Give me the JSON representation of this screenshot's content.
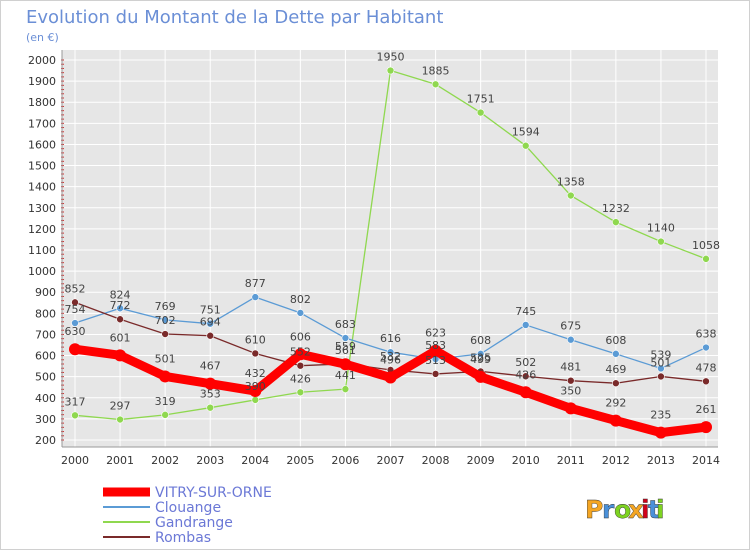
{
  "chart_data": {
    "type": "line",
    "title": "Evolution du Montant de la Dette par Habitant",
    "subtitle": "(en €)",
    "categories": [
      "2000",
      "2001",
      "2002",
      "2003",
      "2004",
      "2005",
      "2006",
      "2007",
      "2008",
      "2009",
      "2010",
      "2011",
      "2012",
      "2013",
      "2014"
    ],
    "ylim": [
      200,
      2000
    ],
    "yticks": [
      200,
      300,
      400,
      500,
      600,
      700,
      800,
      900,
      1000,
      1100,
      1200,
      1300,
      1400,
      1500,
      1600,
      1700,
      1800,
      1900,
      2000
    ],
    "grid": true,
    "legend_position": "bottom-left",
    "series": [
      {
        "name": "VITRY-SUR-ORNE",
        "color": "#ff0000",
        "values": [
          630,
          601,
          501,
          467,
          432,
          606,
          559,
          496,
          623,
          499,
          426,
          350,
          292,
          235,
          261
        ],
        "labels": [
          "630",
          "601",
          "501",
          "467",
          "432",
          "606",
          "559",
          "496",
          "623",
          "499",
          "426",
          "350",
          "292",
          "235",
          "261"
        ]
      },
      {
        "name": "Clouange",
        "color": "#5b9bd5",
        "values": [
          754,
          824,
          769,
          751,
          877,
          802,
          683,
          616,
          583,
          608,
          745,
          675,
          608,
          539,
          638
        ],
        "labels": [
          "754",
          "824",
          "769",
          "751",
          "877",
          "802",
          "683",
          "616",
          "583",
          "608",
          "745",
          "675",
          "608",
          "539",
          "638"
        ]
      },
      {
        "name": "Gandrange",
        "color": "#8fd84f",
        "values": [
          317,
          297,
          319,
          353,
          390,
          426,
          441,
          1950,
          1885,
          1751,
          1594,
          1358,
          1232,
          1140,
          1058
        ],
        "labels": [
          "317",
          "297",
          "319",
          "353",
          "390",
          "426",
          "441",
          "1950",
          "1885",
          "1751",
          "1594",
          "1358",
          "1232",
          "1140",
          "1058"
        ]
      },
      {
        "name": "Rombas",
        "color": "#7a2a2a",
        "values": [
          852,
          772,
          702,
          694,
          610,
          552,
          561,
          532,
          513,
          525,
          502,
          481,
          469,
          501,
          478
        ],
        "labels": [
          "852",
          "772",
          "702",
          "694",
          "610",
          "552",
          "561",
          "532",
          "513",
          "525",
          "502",
          "481",
          "469",
          "501",
          "478"
        ]
      }
    ]
  },
  "branding": {
    "logo_text": "Proxiti",
    "logo_colors": [
      "#f5a623",
      "#4a90d9",
      "#7ed321",
      "#f5a623",
      "#d0021b",
      "#4a90d9",
      "#7ed321"
    ]
  },
  "colors": {
    "title": "#6b8fd6",
    "text": "#333333",
    "grid": "#ffffff",
    "plot_bg": "#e6e6e6",
    "page_bg": "#ffffff",
    "legend_text": "#6b78d6"
  }
}
